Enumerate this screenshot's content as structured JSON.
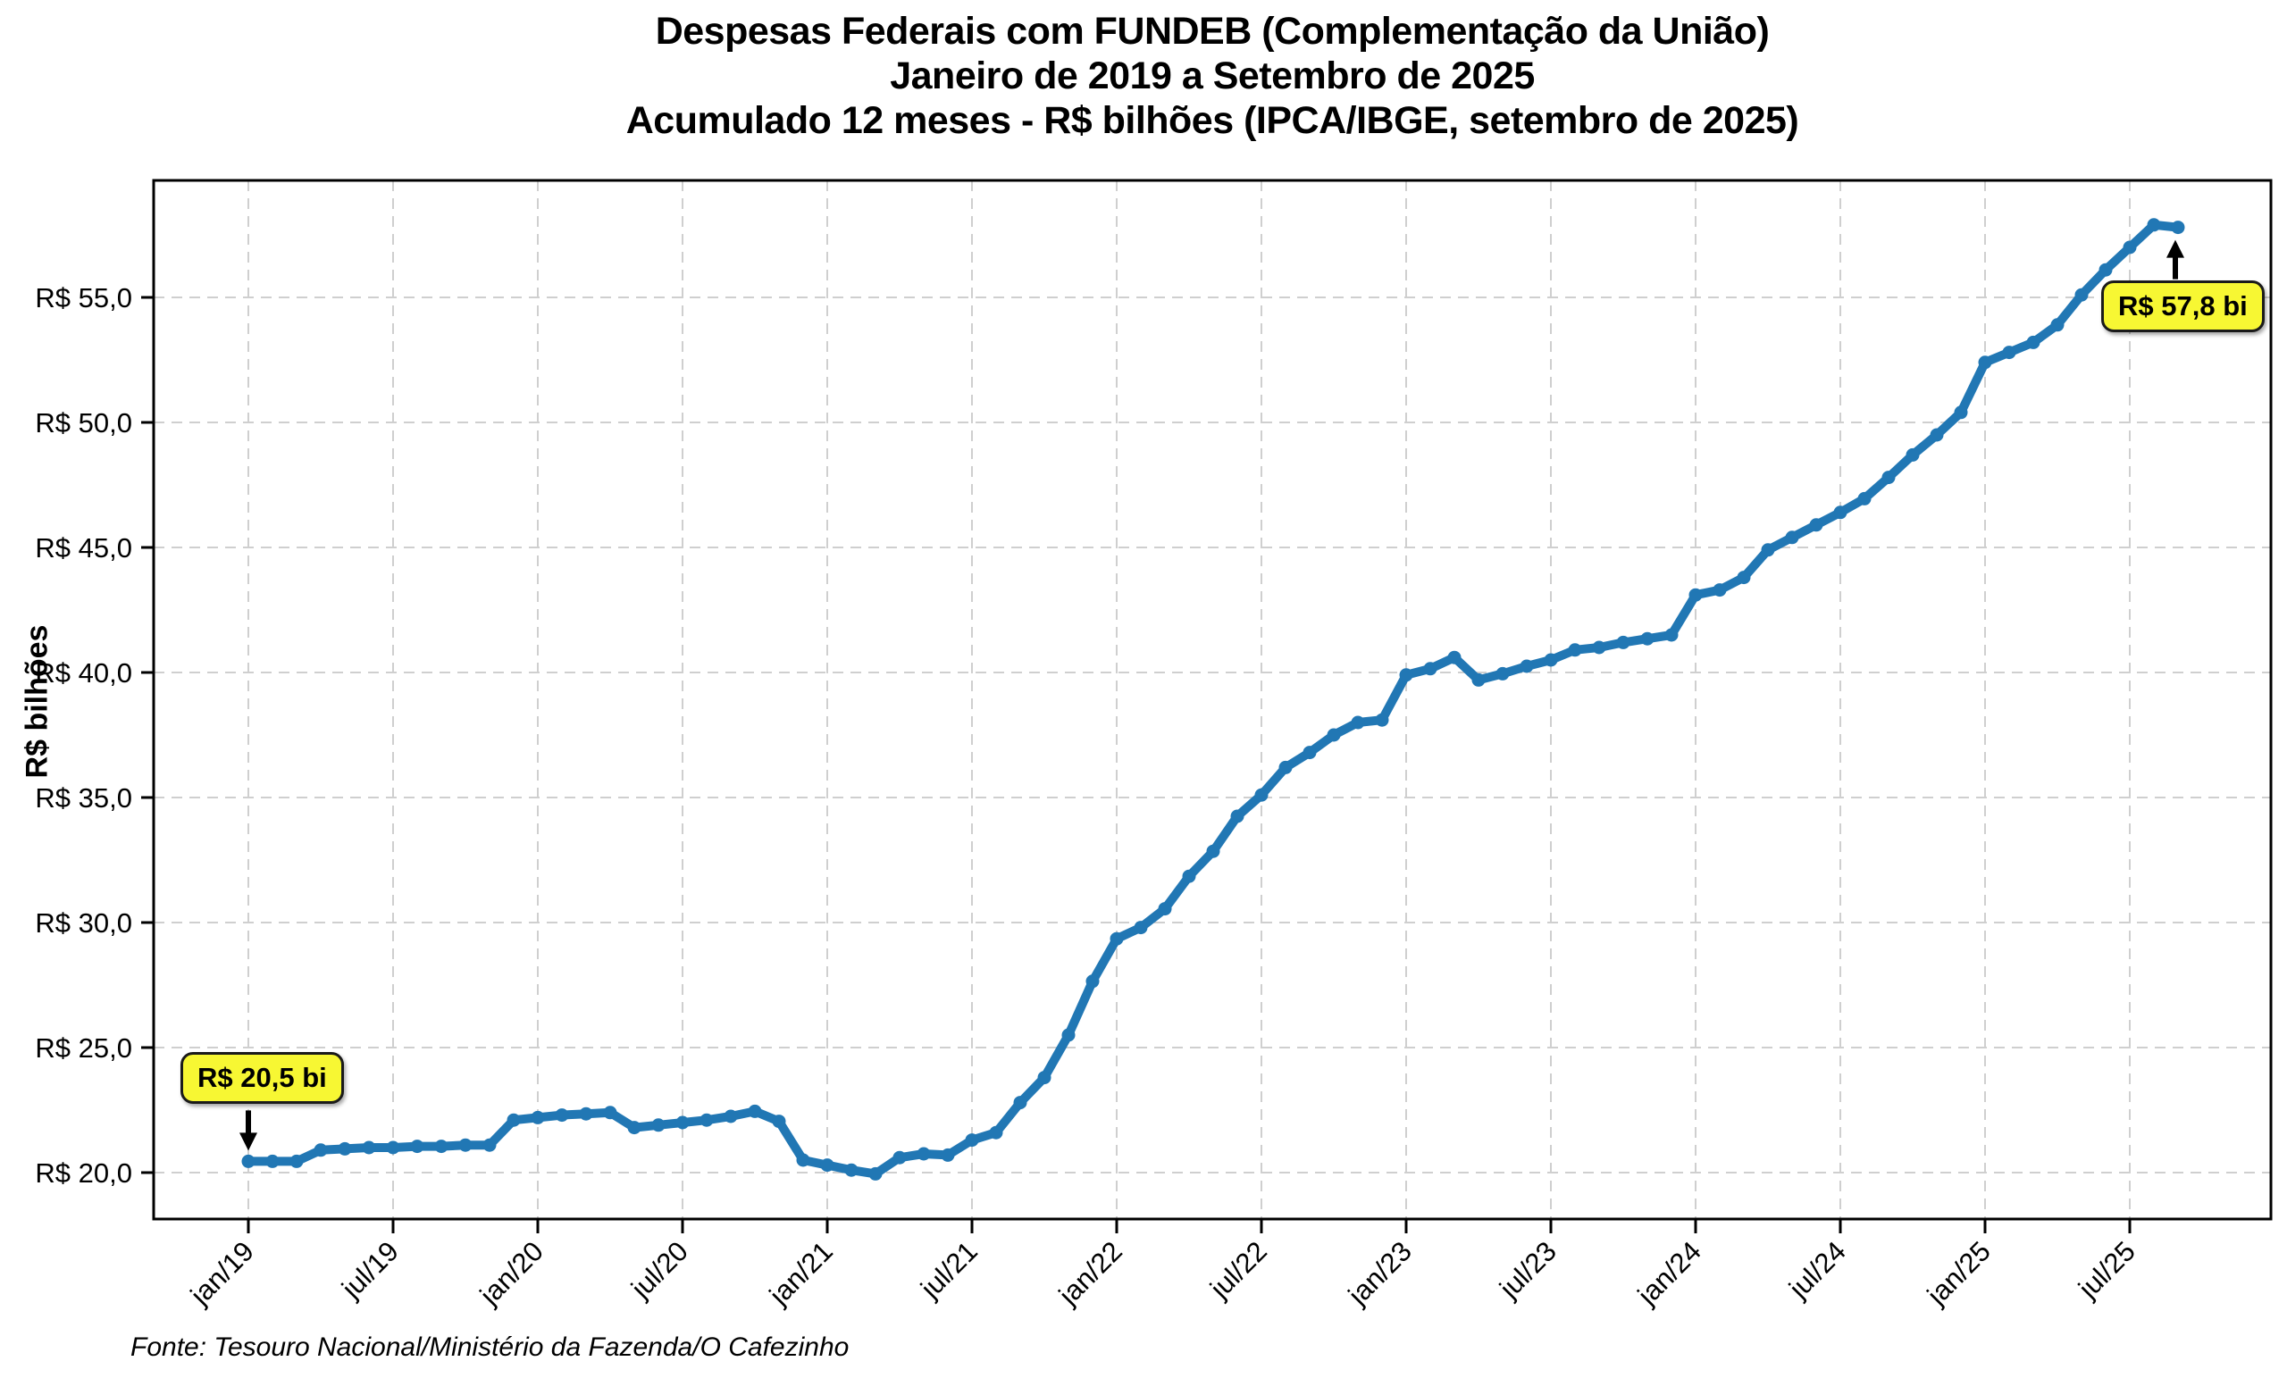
{
  "title": {
    "line1": "Despesas Federais com FUNDEB (Complementação da União)",
    "line2": "Janeiro de 2019 a Setembro de 2025",
    "line3": "Acumulado 12 meses - R$ bilhões (IPCA/IBGE, setembro de 2025)"
  },
  "footer": "Fonte: Tesouro Nacional/Ministério da Fazenda/O Cafezinho",
  "y_axis": {
    "label": "R$ bilhões",
    "tick_values": [
      20,
      25,
      30,
      35,
      40,
      45,
      50,
      55
    ],
    "tick_labels": [
      "R$ 20,0",
      "R$ 25,0",
      "R$ 30,0",
      "R$ 35,0",
      "R$ 40,0",
      "R$ 45,0",
      "R$ 50,0",
      "R$ 55,0"
    ]
  },
  "x_axis": {
    "tick_month_indices": [
      0,
      6,
      12,
      18,
      24,
      30,
      36,
      42,
      48,
      54,
      60,
      66,
      72,
      78
    ],
    "tick_labels": [
      "jan/19",
      "jul/19",
      "jan/20",
      "jul/20",
      "jan/21",
      "jul/21",
      "jan/22",
      "jul/22",
      "jan/23",
      "jul/23",
      "jan/24",
      "jul/24",
      "jan/25",
      "jul/25"
    ]
  },
  "annotations": [
    {
      "label": "R$ 20,5 bi",
      "point_index": 0,
      "direction": "down"
    },
    {
      "label": "R$ 57,8 bi",
      "point_index": 80,
      "direction": "up"
    }
  ],
  "colors": {
    "line": "#2177b4",
    "marker": "#2177b4",
    "grid": "#cfcfcf",
    "axis": "#000000",
    "annotation_bg": "#f7f733",
    "annotation_border": "#1a1a1a",
    "text": "#000000"
  },
  "chart_data": {
    "type": "line",
    "title": "Despesas Federais com FUNDEB (Complementação da União)",
    "subtitle": "Janeiro de 2019 a Setembro de 2025",
    "unit_note": "Acumulado 12 meses - R$ bilhões (IPCA/IBGE, setembro de 2025)",
    "xlabel": "",
    "ylabel": "R$ bilhões",
    "x_start": "jan/2019",
    "x_end": "set/2025",
    "x_tick_labels": [
      "jan/19",
      "jul/19",
      "jan/20",
      "jul/20",
      "jan/21",
      "jul/21",
      "jan/22",
      "jul/22",
      "jan/23",
      "jul/23",
      "jan/24",
      "jul/24",
      "jan/25",
      "jul/25"
    ],
    "ylim": [
      18.1,
      59.7
    ],
    "grid": true,
    "legend": false,
    "values": [
      20.45,
      20.45,
      20.45,
      20.9,
      20.95,
      21.0,
      21.0,
      21.05,
      21.05,
      21.1,
      21.1,
      22.1,
      22.2,
      22.3,
      22.35,
      22.4,
      21.8,
      21.9,
      22.0,
      22.1,
      22.25,
      22.45,
      22.05,
      20.5,
      20.3,
      20.1,
      19.95,
      20.6,
      20.75,
      20.7,
      21.3,
      21.6,
      22.8,
      23.8,
      25.5,
      27.65,
      29.35,
      29.8,
      30.55,
      31.85,
      32.85,
      34.25,
      35.1,
      36.2,
      36.8,
      37.5,
      38.0,
      38.1,
      39.9,
      40.15,
      40.6,
      39.7,
      39.95,
      40.25,
      40.5,
      40.9,
      41.0,
      41.2,
      41.35,
      41.5,
      43.1,
      43.3,
      43.8,
      44.9,
      45.4,
      45.9,
      46.4,
      46.95,
      47.8,
      48.7,
      49.5,
      50.4,
      52.4,
      52.8,
      53.2,
      53.9,
      55.1,
      56.1,
      57.0,
      57.9,
      57.8
    ],
    "highlight_first_value_label": "R$ 20,5 bi",
    "highlight_last_value_label": "R$ 57,8 bi"
  }
}
